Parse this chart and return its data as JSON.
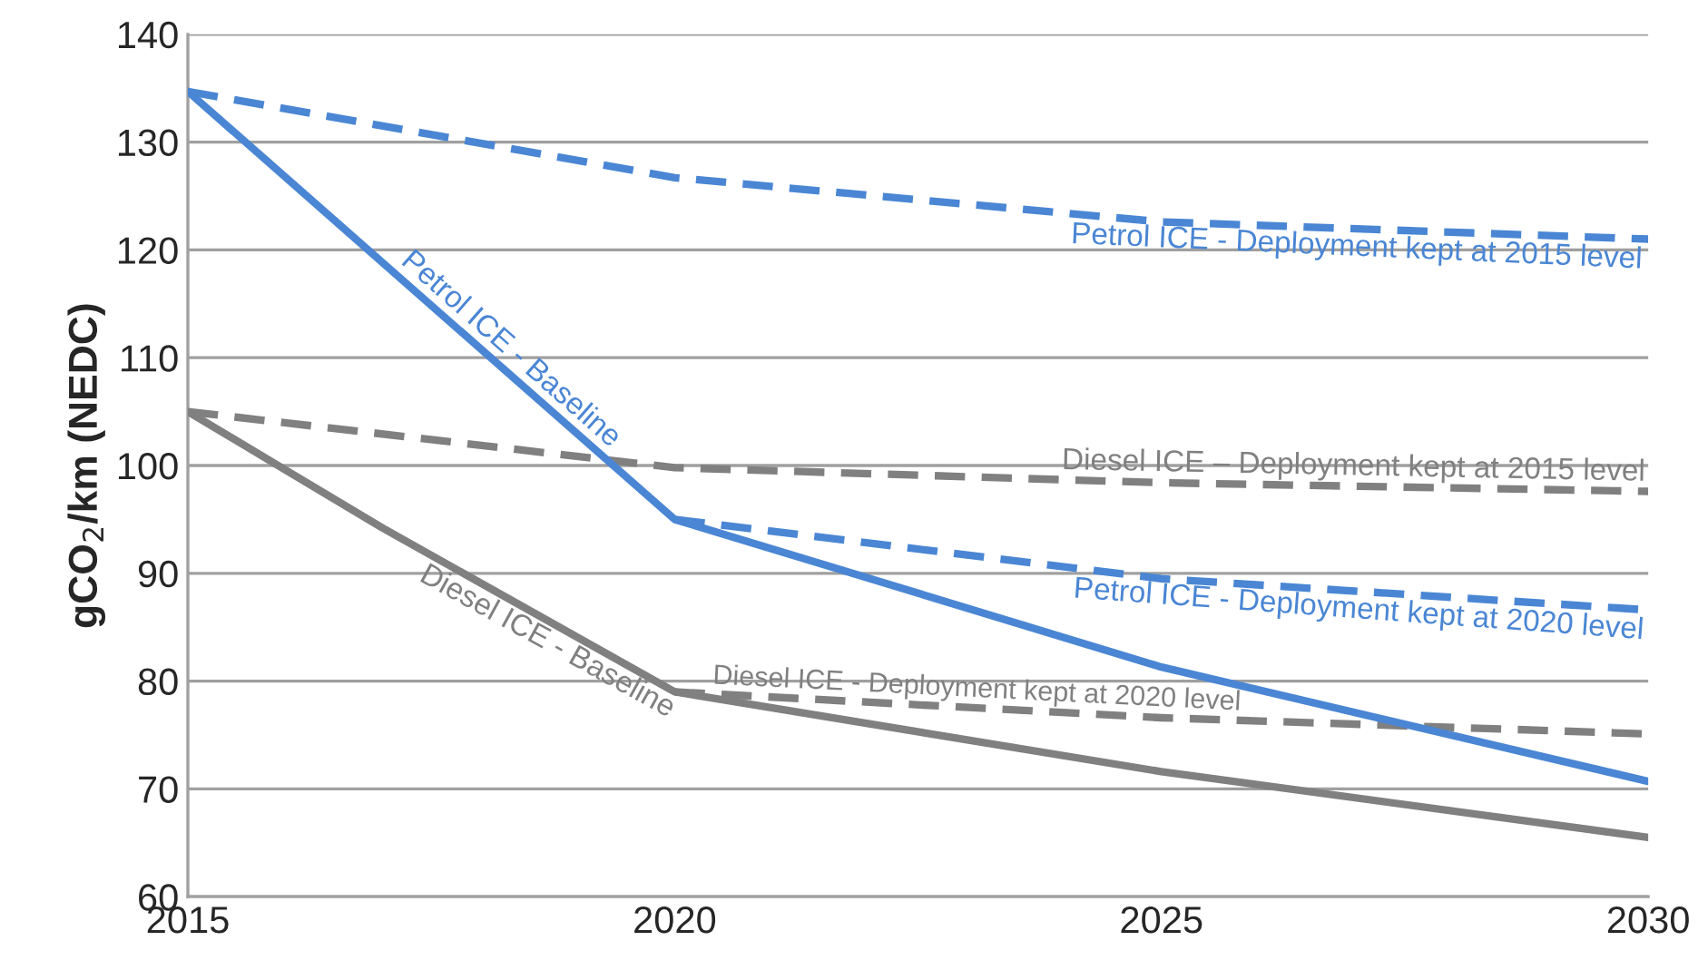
{
  "chart_data": {
    "type": "line",
    "ylabel": "gCO$_{2}$/km (NEDC)",
    "xlim": [
      2015,
      2030
    ],
    "xticks": [
      2015,
      2020,
      2025,
      2030
    ],
    "ylim": [
      60,
      140
    ],
    "yticks": [
      60,
      70,
      80,
      90,
      100,
      110,
      120,
      130,
      140
    ],
    "grid": "y",
    "legend": false,
    "marker": "none",
    "series": [
      {
        "name": "Petrol ICE - Deployment kept at 2015 level",
        "color": "#4a86d4",
        "line_style": "dashed",
        "x": [
          2015,
          2020,
          2025,
          2030
        ],
        "values": [
          134.7,
          126.7,
          122.6,
          121.0
        ]
      },
      {
        "name": "Diesel ICE – Deployment kept at 2015 level",
        "color": "#808080",
        "line_style": "dashed",
        "x": [
          2015,
          2020,
          2025,
          2030
        ],
        "values": [
          105,
          99.8,
          98.4,
          97.6
        ]
      },
      {
        "name": "Petrol ICE - Deployment kept at 2020 level",
        "color": "#4a86d4",
        "line_style": "dashed",
        "x": [
          2020,
          2025,
          2030
        ],
        "values": [
          95,
          89.5,
          86.6
        ]
      },
      {
        "name": "Diesel ICE - Deployment kept at 2020 level",
        "color": "#808080",
        "line_style": "dashed",
        "x": [
          2020,
          2025,
          2030
        ],
        "values": [
          79,
          76.6,
          75.1
        ]
      },
      {
        "name": "Petrol ICE - Baseline",
        "color": "#4a86d4",
        "line_style": "solid",
        "x": [
          2015,
          2020,
          2025,
          2030
        ],
        "values": [
          134.7,
          95,
          81.3,
          70.7
        ]
      },
      {
        "name": "Diesel ICE - Baseline",
        "color": "#808080",
        "line_style": "solid",
        "x": [
          2015,
          2017,
          2020,
          2025,
          2030
        ],
        "values": [
          105,
          94.2,
          79,
          71.6,
          65.5
        ]
      }
    ]
  }
}
